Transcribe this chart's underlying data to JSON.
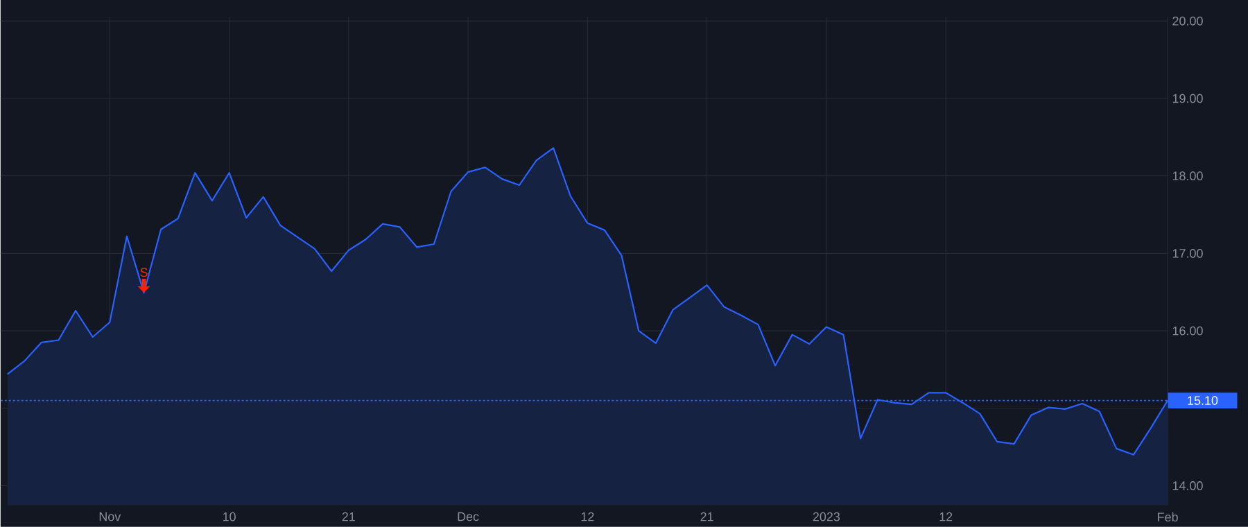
{
  "chart_data": {
    "type": "area",
    "categories": [
      null,
      null,
      null,
      null,
      null,
      null,
      "Nov",
      null,
      null,
      null,
      null,
      null,
      null,
      "10",
      null,
      null,
      null,
      null,
      null,
      null,
      "21",
      null,
      null,
      null,
      null,
      null,
      null,
      "Dec",
      null,
      null,
      null,
      null,
      null,
      null,
      "12",
      null,
      null,
      null,
      null,
      null,
      null,
      "21",
      null,
      null,
      null,
      null,
      null,
      null,
      "2023",
      null,
      null,
      null,
      null,
      null,
      null,
      "12",
      null,
      null,
      null,
      null,
      null,
      null,
      null,
      null,
      null,
      null,
      null,
      null,
      "Feb"
    ],
    "values": [
      15.44,
      15.61,
      15.85,
      15.88,
      16.26,
      15.92,
      16.11,
      17.22,
      16.49,
      17.31,
      17.45,
      18.04,
      17.68,
      18.04,
      17.46,
      17.73,
      17.36,
      17.21,
      17.06,
      16.77,
      17.04,
      17.18,
      17.38,
      17.34,
      17.08,
      17.12,
      17.8,
      18.05,
      18.11,
      17.96,
      17.88,
      18.2,
      18.36,
      17.74,
      17.39,
      17.3,
      16.97,
      16.0,
      15.84,
      16.27,
      16.43,
      16.59,
      16.31,
      16.2,
      16.08,
      15.55,
      15.95,
      15.83,
      16.05,
      15.95,
      14.61,
      15.11,
      15.07,
      15.05,
      15.2,
      15.2,
      15.07,
      14.93,
      14.57,
      14.54,
      14.91,
      15.01,
      14.99,
      15.06,
      14.96,
      14.48,
      14.4,
      14.74,
      15.1
    ],
    "color": "#2962ff",
    "ylim": [
      13.75,
      20.05
    ],
    "yticks": [
      {
        "value": 14,
        "label": "14.00"
      },
      {
        "value": 15,
        "label": null
      },
      {
        "value": 16,
        "label": "16.00"
      },
      {
        "value": 17,
        "label": "17.00"
      },
      {
        "value": 18,
        "label": "18.00"
      },
      {
        "value": 19,
        "label": "19.00"
      },
      {
        "value": 20,
        "label": "20.00"
      }
    ],
    "grid": true,
    "ref_lines": [
      {
        "axis": "y",
        "value": 15.1,
        "label": "15.10",
        "color": "#2962ff",
        "line_style": "dotted"
      }
    ],
    "annotations": [
      {
        "text": "S",
        "y": 16.49
      }
    ]
  }
}
